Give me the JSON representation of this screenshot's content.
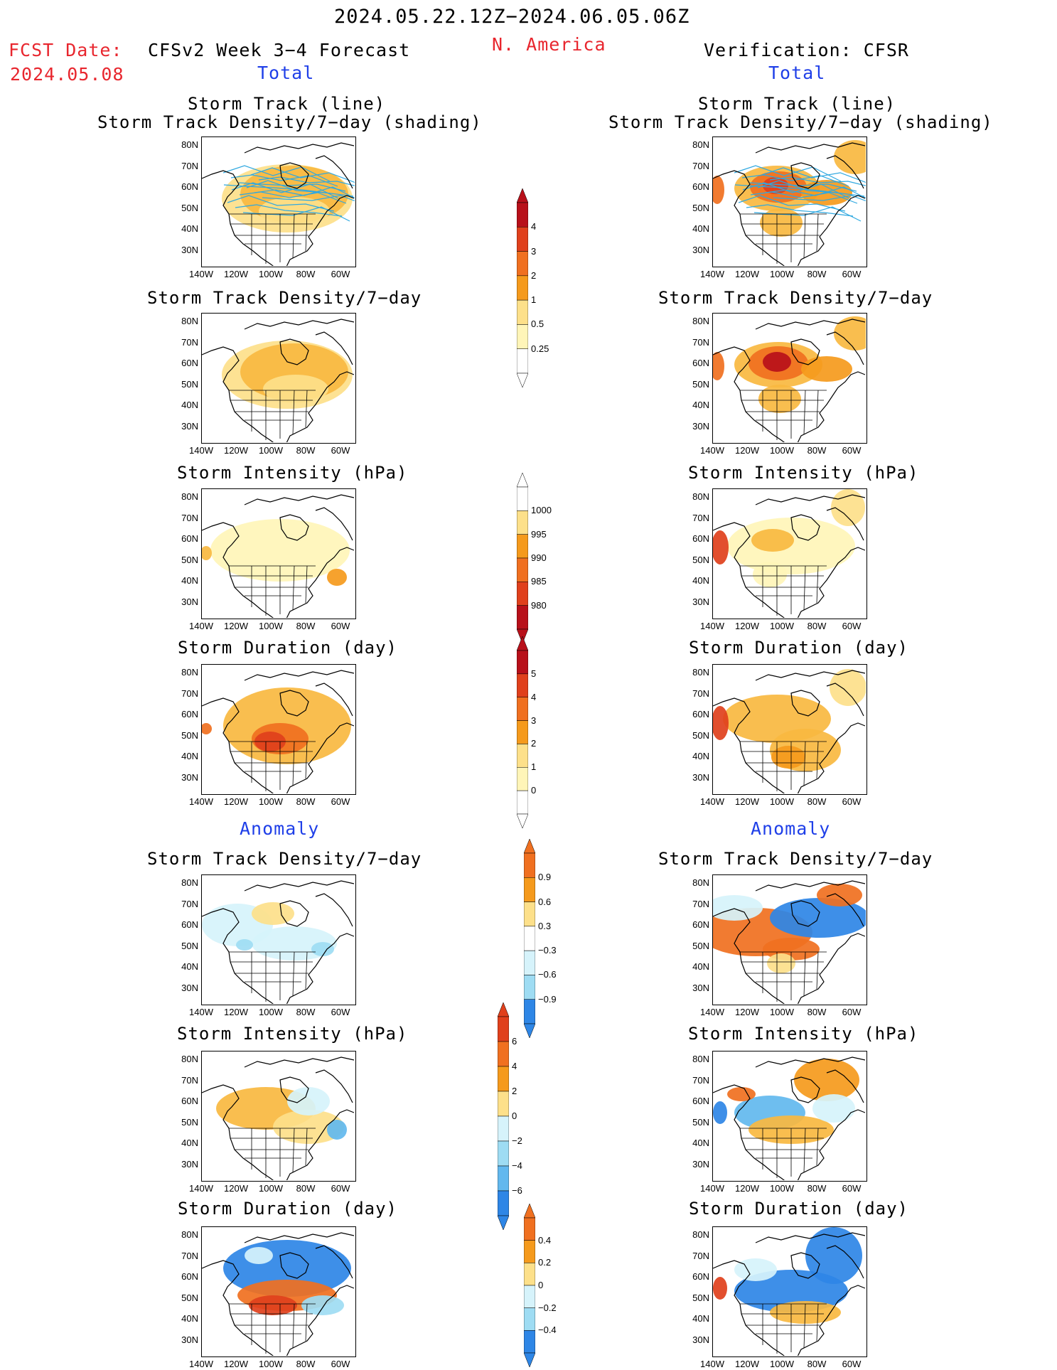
{
  "header": {
    "period": "2024.05.22.12Z−2024.06.05.06Z",
    "fcst_label": "FCST Date:",
    "fcst_date": "2024.05.08",
    "forecast_title": "CFSv2 Week 3−4 Forecast",
    "region": "N. America",
    "verification": "Verification: CFSR"
  },
  "sections": {
    "total": "Total",
    "anomaly": "Anomaly"
  },
  "panels": {
    "p1_line1": "Storm Track (line)",
    "p1_line2": "Storm Track Density/7−day (shading)",
    "density": "Storm Track Density/7−day",
    "intensity": "Storm Intensity (hPa)",
    "duration": "Storm Duration (day)"
  },
  "axes": {
    "lat": [
      "80N",
      "70N",
      "60N",
      "50N",
      "40N",
      "30N"
    ],
    "lon": [
      "140W",
      "120W",
      "100W",
      "80W",
      "60W"
    ]
  },
  "colorbars": {
    "density_total": [
      "4",
      "3",
      "2",
      "1",
      "0.5",
      "0.25"
    ],
    "intensity_total": [
      "1000",
      "995",
      "990",
      "985",
      "980"
    ],
    "duration_total": [
      "5",
      "4",
      "3",
      "2",
      "1",
      "0"
    ],
    "density_anom": [
      "0.9",
      "0.6",
      "0.3",
      "−0.3",
      "−0.6",
      "−0.9"
    ],
    "intensity_anom": [
      "6",
      "4",
      "2",
      "0",
      "−2",
      "−4",
      "−6"
    ],
    "duration_anom": [
      "0.4",
      "0.2",
      "0",
      "−0.2",
      "−0.4"
    ]
  },
  "colors": {
    "accent_red": "#e8262e",
    "accent_blue": "#1f3fe8",
    "warm": [
      "#fff5b8",
      "#fde08a",
      "#f8b940",
      "#f59a1c",
      "#f07020",
      "#e0401c",
      "#b8101a"
    ],
    "cool": [
      "#d6f3fb",
      "#9edcf3",
      "#62b8ee",
      "#2e86e6",
      "#1a5fcf"
    ]
  }
}
